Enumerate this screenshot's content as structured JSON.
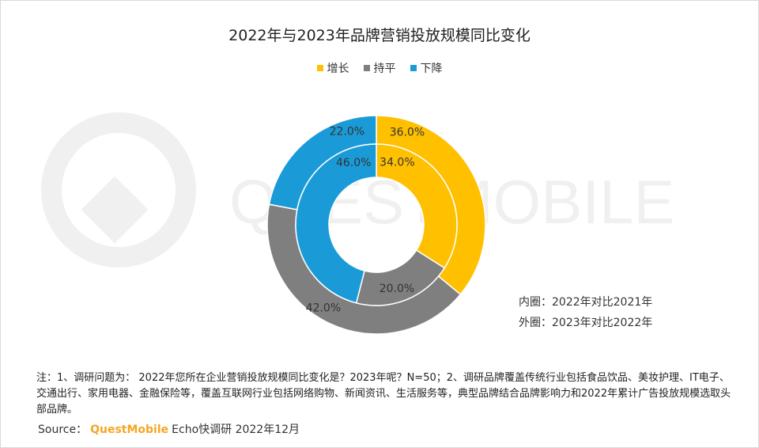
{
  "chart_data": {
    "type": "donut",
    "title": "2022年与2023年品牌营销投放规模同比变化",
    "legend": [
      {
        "label": "增长",
        "color": "#ffc000"
      },
      {
        "label": "持平",
        "color": "#7f7f7f"
      },
      {
        "label": "下降",
        "color": "#1a9bd7"
      }
    ],
    "categories": [
      "增长",
      "持平",
      "下降"
    ],
    "series": [
      {
        "name": "外圈：2023年对比2022年",
        "values": [
          36.0,
          42.0,
          22.0
        ],
        "labels": [
          "36.0%",
          "42.0%",
          "22.0%"
        ]
      },
      {
        "name": "内圈：2022年对比2021年",
        "values": [
          34.0,
          20.0,
          46.0
        ],
        "labels": [
          "34.0%",
          "20.0%",
          "46.0%"
        ]
      }
    ],
    "watermark": "QUESTMOBILE"
  },
  "annotations": {
    "inner_ring": "内圈：2022年对比2021年",
    "outer_ring": "外圈：2023年对比2022年"
  },
  "notes": "注：1、调研问题为： 2022年您所在企业营销投放规模同比变化是？2023年呢？N=50；2、调研品牌覆盖传统行业包括食品饮品、美妆护理、IT电子、交通出行、家用电器、金融保险等，覆盖互联网行业包括网络购物、新闻资讯、生活服务等，典型品牌结合品牌影响力和2022年累计广告投放规模选取头部品牌。",
  "source": {
    "prefix": "Source：",
    "brand": "QuestMobile",
    "suffix": "Echo快调研 2022年12月"
  }
}
